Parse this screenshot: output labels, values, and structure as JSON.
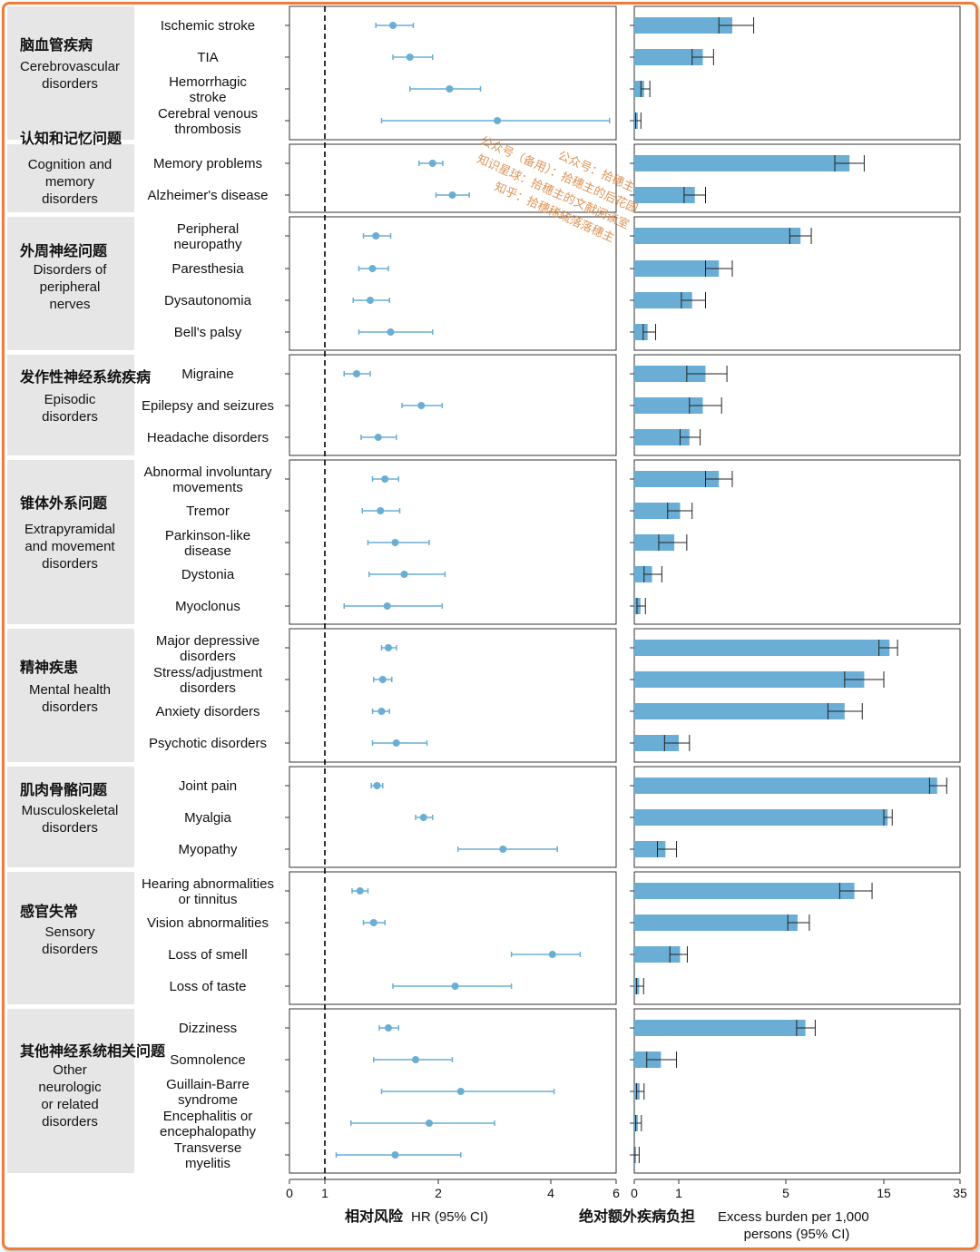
{
  "chart_data": {
    "type": "forest_plot_with_bars",
    "left_axis": {
      "title_zh": "相对风险",
      "title_en": "HR (95% CI)",
      "ticks": [
        "0",
        "1",
        "2",
        "4",
        "6"
      ],
      "reference_line": 1
    },
    "right_axis": {
      "title_zh": "绝对额外疾病负担",
      "title_en_line1": "Excess burden per 1,000",
      "title_en_line2": "persons (95% CI)",
      "ticks": [
        "0",
        "1",
        "5",
        "15",
        "35"
      ]
    },
    "groups": [
      {
        "zh": "脑血管疾病",
        "en": [
          "Cerebrovascular",
          "disorders"
        ],
        "items": [
          {
            "label": [
              "Ischemic stroke"
            ],
            "hr": 1.6,
            "lo": 1.45,
            "hi": 1.78,
            "eb": 3.0,
            "elo": 2.5,
            "ehi": 3.8
          },
          {
            "label": [
              "TIA"
            ],
            "hr": 1.75,
            "lo": 1.6,
            "hi": 1.95,
            "eb": 1.9,
            "elo": 1.5,
            "ehi": 2.3
          },
          {
            "label": [
              "Hemorrhagic",
              "stroke"
            ],
            "hr": 2.2,
            "lo": 1.75,
            "hi": 2.75,
            "eb": 0.22,
            "elo": 0.15,
            "ehi": 0.35
          },
          {
            "label": [
              "Cerebral venous",
              "thrombosis"
            ],
            "hr": 3.05,
            "lo": 1.5,
            "hi": 5.8,
            "eb": 0.08,
            "elo": 0.03,
            "ehi": 0.15
          }
        ]
      },
      {
        "zh": "认知和记忆问题",
        "en": [
          "Cognition and",
          "memory",
          "disorders"
        ],
        "items": [
          {
            "label": [
              "Memory problems"
            ],
            "hr": 1.95,
            "lo": 1.83,
            "hi": 2.08,
            "eb": 11.5,
            "elo": 10.0,
            "ehi": 13.0
          },
          {
            "label": [
              "Alzheimer's disease"
            ],
            "hr": 2.25,
            "lo": 1.98,
            "hi": 2.55,
            "eb": 1.6,
            "elo": 1.2,
            "ehi": 2.0
          }
        ]
      },
      {
        "zh": "外周神经问题",
        "en": [
          "Disorders of",
          "peripheral",
          "nerves"
        ],
        "items": [
          {
            "label": [
              "Peripheral",
              "neuropathy"
            ],
            "hr": 1.45,
            "lo": 1.34,
            "hi": 1.58,
            "eb": 6.5,
            "elo": 5.4,
            "ehi": 7.6
          },
          {
            "label": [
              "Paresthesia"
            ],
            "hr": 1.42,
            "lo": 1.3,
            "hi": 1.56,
            "eb": 2.5,
            "elo": 2.0,
            "ehi": 3.0
          },
          {
            "label": [
              "Dysautonomia"
            ],
            "hr": 1.4,
            "lo": 1.25,
            "hi": 1.57,
            "eb": 1.5,
            "elo": 1.1,
            "ehi": 2.0
          },
          {
            "label": [
              "Bell's palsy"
            ],
            "hr": 1.58,
            "lo": 1.3,
            "hi": 1.95,
            "eb": 0.3,
            "elo": 0.2,
            "ehi": 0.48
          }
        ]
      },
      {
        "zh": "发作性神经系统疾病",
        "en": [
          "Episodic",
          "disorders"
        ],
        "items": [
          {
            "label": [
              "Migraine"
            ],
            "hr": 1.28,
            "lo": 1.17,
            "hi": 1.4,
            "eb": 2.0,
            "elo": 1.3,
            "ehi": 2.8
          },
          {
            "label": [
              "Epilepsy and seizures"
            ],
            "hr": 1.85,
            "lo": 1.68,
            "hi": 2.07,
            "eb": 1.9,
            "elo": 1.4,
            "ehi": 2.6
          },
          {
            "label": [
              "Headache disorders"
            ],
            "hr": 1.47,
            "lo": 1.32,
            "hi": 1.63,
            "eb": 1.4,
            "elo": 1.05,
            "ehi": 1.8
          }
        ]
      },
      {
        "zh": "锥体外系问题",
        "en": [
          "Extrapyramidal",
          "and movement",
          "disorders"
        ],
        "items": [
          {
            "label": [
              "Abnormal involuntary",
              "movements"
            ],
            "hr": 1.53,
            "lo": 1.42,
            "hi": 1.65,
            "eb": 2.5,
            "elo": 2.0,
            "ehi": 3.0
          },
          {
            "label": [
              "Tremor"
            ],
            "hr": 1.49,
            "lo": 1.33,
            "hi": 1.66,
            "eb": 1.05,
            "elo": 0.75,
            "ehi": 1.5
          },
          {
            "label": [
              "Parkinson-like",
              "disease"
            ],
            "hr": 1.62,
            "lo": 1.38,
            "hi": 1.92,
            "eb": 0.9,
            "elo": 0.55,
            "ehi": 1.3
          },
          {
            "label": [
              "Dystonia"
            ],
            "hr": 1.7,
            "lo": 1.39,
            "hi": 2.12,
            "eb": 0.4,
            "elo": 0.22,
            "ehi": 0.62
          },
          {
            "label": [
              "Myoclonus"
            ],
            "hr": 1.55,
            "lo": 1.17,
            "hi": 2.07,
            "eb": 0.14,
            "elo": 0.06,
            "ehi": 0.25
          }
        ]
      },
      {
        "zh": "精神疾患",
        "en": [
          "Mental health",
          "disorders"
        ],
        "items": [
          {
            "label": [
              "Major depressive",
              "disorders"
            ],
            "hr": 1.56,
            "lo": 1.5,
            "hi": 1.63,
            "eb": 16.5,
            "elo": 14.5,
            "ehi": 18.6
          },
          {
            "label": [
              "Stress/adjustment",
              "disorders"
            ],
            "hr": 1.51,
            "lo": 1.43,
            "hi": 1.59,
            "eb": 13.0,
            "elo": 11.0,
            "ehi": 15.0
          },
          {
            "label": [
              "Anxiety disorders"
            ],
            "hr": 1.5,
            "lo": 1.42,
            "hi": 1.57,
            "eb": 11.0,
            "elo": 9.3,
            "ehi": 12.8
          },
          {
            "label": [
              "Psychotic disorders"
            ],
            "hr": 1.63,
            "lo": 1.42,
            "hi": 1.9,
            "eb": 1.0,
            "elo": 0.68,
            "ehi": 1.4
          }
        ]
      },
      {
        "zh": "肌肉骨骼问题",
        "en": [
          "Musculoskeletal",
          "disorders"
        ],
        "items": [
          {
            "label": [
              "Joint pain"
            ],
            "hr": 1.46,
            "lo": 1.41,
            "hi": 1.51,
            "eb": 29.0,
            "elo": 27.0,
            "ehi": 31.5
          },
          {
            "label": [
              "Myalgia"
            ],
            "hr": 1.87,
            "lo": 1.8,
            "hi": 1.95,
            "eb": 16.0,
            "elo": 15.0,
            "ehi": 17.2
          },
          {
            "label": [
              "Myopathy"
            ],
            "hr": 3.15,
            "lo": 2.35,
            "hi": 4.2,
            "eb": 0.7,
            "elo": 0.52,
            "ehi": 0.95
          }
        ]
      },
      {
        "zh": "感官失常",
        "en": [
          "Sensory",
          "disorders"
        ],
        "items": [
          {
            "label": [
              "Hearing abnormalities",
              "or tinnitus"
            ],
            "hr": 1.31,
            "lo": 1.24,
            "hi": 1.38,
            "eb": 12.0,
            "elo": 10.5,
            "ehi": 13.8
          },
          {
            "label": [
              "Vision abnormalities"
            ],
            "hr": 1.43,
            "lo": 1.34,
            "hi": 1.53,
            "eb": 6.2,
            "elo": 5.2,
            "ehi": 7.4
          },
          {
            "label": [
              "Loss of smell"
            ],
            "hr": 4.05,
            "lo": 3.3,
            "hi": 4.9,
            "eb": 1.05,
            "elo": 0.8,
            "ehi": 1.32
          },
          {
            "label": [
              "Loss of taste"
            ],
            "hr": 2.3,
            "lo": 1.6,
            "hi": 3.3,
            "eb": 0.11,
            "elo": 0.05,
            "ehi": 0.21
          }
        ]
      },
      {
        "zh": "其他神经系统相关问题",
        "en": [
          "Other",
          "neurologic",
          "or related",
          "disorders"
        ],
        "items": [
          {
            "label": [
              "Dizziness"
            ],
            "hr": 1.56,
            "lo": 1.48,
            "hi": 1.65,
            "eb": 7.0,
            "elo": 6.1,
            "ehi": 8.0
          },
          {
            "label": [
              "Somnolence"
            ],
            "hr": 1.8,
            "lo": 1.43,
            "hi": 2.25,
            "eb": 0.6,
            "elo": 0.28,
            "ehi": 0.95
          },
          {
            "label": [
              "Guillain-Barre",
              "syndrome"
            ],
            "hr": 2.4,
            "lo": 1.5,
            "hi": 4.1,
            "eb": 0.12,
            "elo": 0.05,
            "ehi": 0.22
          },
          {
            "label": [
              "Encephalitis or",
              "encephalopathy"
            ],
            "hr": 1.92,
            "lo": 1.23,
            "hi": 3.0,
            "eb": 0.08,
            "elo": 0.03,
            "ehi": 0.16
          },
          {
            "label": [
              "Transverse",
              "myelitis"
            ],
            "hr": 1.62,
            "lo": 1.1,
            "hi": 2.4,
            "eb": 0.04,
            "elo": 0.0,
            "ehi": 0.11
          }
        ]
      }
    ]
  },
  "watermark": [
    "公众号：拾穗主",
    "公众号（备用）：拾穗主的后花园",
    "知识星球：拾穗主的文献阅读室",
    "知乎：拾穗稀疏落落穗主"
  ]
}
